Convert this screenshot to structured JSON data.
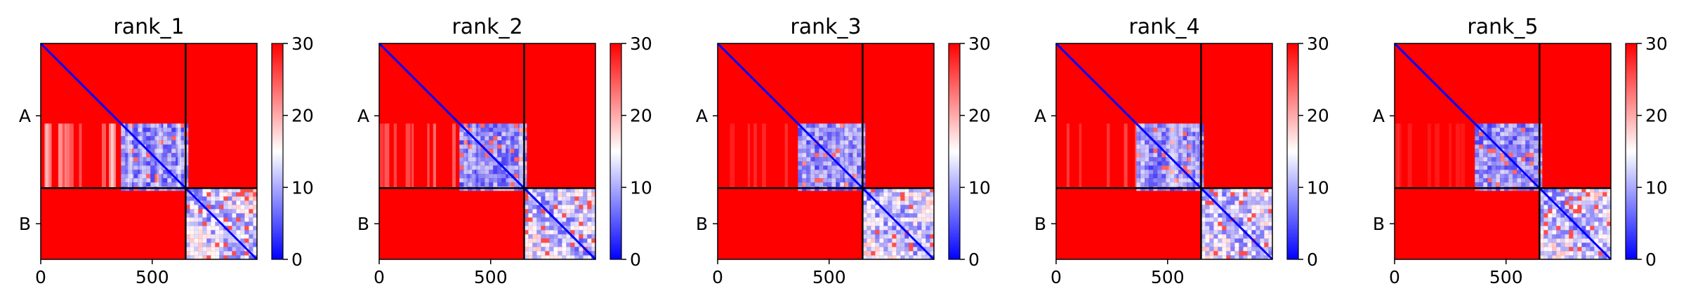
{
  "chart_data": [
    {
      "type": "heatmap",
      "title": "rank_1",
      "xlabel": "",
      "ylabel": "",
      "x_ticks": [
        "0",
        "500"
      ],
      "y_tick_labels": [
        "A",
        "B"
      ],
      "chain_boundary": 650,
      "total_length": 970,
      "colorbar": {
        "ticks": [
          "0",
          "10",
          "20",
          "30"
        ],
        "min": 0,
        "max": 30,
        "colormap": "bwr"
      },
      "colors": {
        "low": "#0000ff",
        "mid": "#ffffff",
        "high": "#ff0000"
      }
    },
    {
      "type": "heatmap",
      "title": "rank_2",
      "xlabel": "",
      "ylabel": "",
      "x_ticks": [
        "0",
        "500"
      ],
      "y_tick_labels": [
        "A",
        "B"
      ],
      "chain_boundary": 650,
      "total_length": 970,
      "colorbar": {
        "ticks": [
          "0",
          "10",
          "20",
          "30"
        ],
        "min": 0,
        "max": 30,
        "colormap": "bwr"
      },
      "colors": {
        "low": "#0000ff",
        "mid": "#ffffff",
        "high": "#ff0000"
      }
    },
    {
      "type": "heatmap",
      "title": "rank_3",
      "xlabel": "",
      "ylabel": "",
      "x_ticks": [
        "0",
        "500"
      ],
      "y_tick_labels": [
        "A",
        "B"
      ],
      "chain_boundary": 650,
      "total_length": 970,
      "colorbar": {
        "ticks": [
          "0",
          "10",
          "20",
          "30"
        ],
        "min": 0,
        "max": 30,
        "colormap": "bwr"
      },
      "colors": {
        "low": "#0000ff",
        "mid": "#ffffff",
        "high": "#ff0000"
      }
    },
    {
      "type": "heatmap",
      "title": "rank_4",
      "xlabel": "",
      "ylabel": "",
      "x_ticks": [
        "0",
        "500"
      ],
      "y_tick_labels": [
        "A",
        "B"
      ],
      "chain_boundary": 650,
      "total_length": 970,
      "colorbar": {
        "ticks": [
          "0",
          "10",
          "20",
          "30"
        ],
        "min": 0,
        "max": 30,
        "colormap": "bwr"
      },
      "colors": {
        "low": "#0000ff",
        "mid": "#ffffff",
        "high": "#ff0000"
      }
    },
    {
      "type": "heatmap",
      "title": "rank_5",
      "xlabel": "",
      "ylabel": "",
      "x_ticks": [
        "0",
        "500"
      ],
      "y_tick_labels": [
        "A",
        "B"
      ],
      "chain_boundary": 650,
      "total_length": 970,
      "colorbar": {
        "ticks": [
          "0",
          "10",
          "20",
          "30"
        ],
        "min": 0,
        "max": 30,
        "colormap": "bwr"
      },
      "colors": {
        "low": "#0000ff",
        "mid": "#ffffff",
        "high": "#ff0000"
      }
    }
  ]
}
